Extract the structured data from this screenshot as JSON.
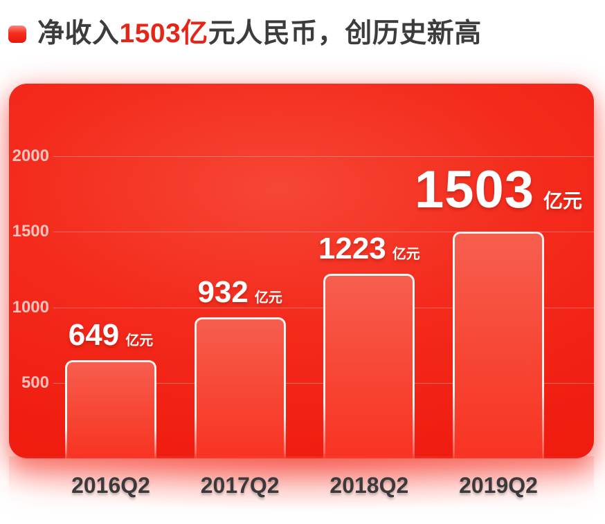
{
  "header": {
    "title_prefix": "净收入",
    "title_highlight": "1503亿",
    "title_suffix": "元人民币，创历史新高",
    "highlight_color": "#e52517",
    "text_color": "#3c3c3c",
    "bullet_color": "#f2190d"
  },
  "chart_data": {
    "type": "bar",
    "title": "净收入1503亿元人民币，创历史新高",
    "categories": [
      "2016Q2",
      "2017Q2",
      "2018Q2",
      "2019Q2"
    ],
    "values": [
      649,
      932,
      1223,
      1503
    ],
    "unit_label": "亿元",
    "ytick_values": [
      500,
      1000,
      1500,
      2000
    ],
    "ylim": [
      0,
      2480
    ],
    "xlabel": "",
    "ylabel": "",
    "grid": true,
    "legend_position": "none",
    "highlight_index": 3,
    "colors": {
      "card_red": "#f42b1c",
      "bar_fill_top": "#f75f4f",
      "bar_fill_bottom": "#f93323",
      "bar_border": "#ffffff",
      "gridline": "rgba(255,255,255,0.30)",
      "ytick_text": "rgba(255,255,255,0.72)",
      "value_text": "#ffffff",
      "xtick_text": "#3a3a3a"
    }
  }
}
